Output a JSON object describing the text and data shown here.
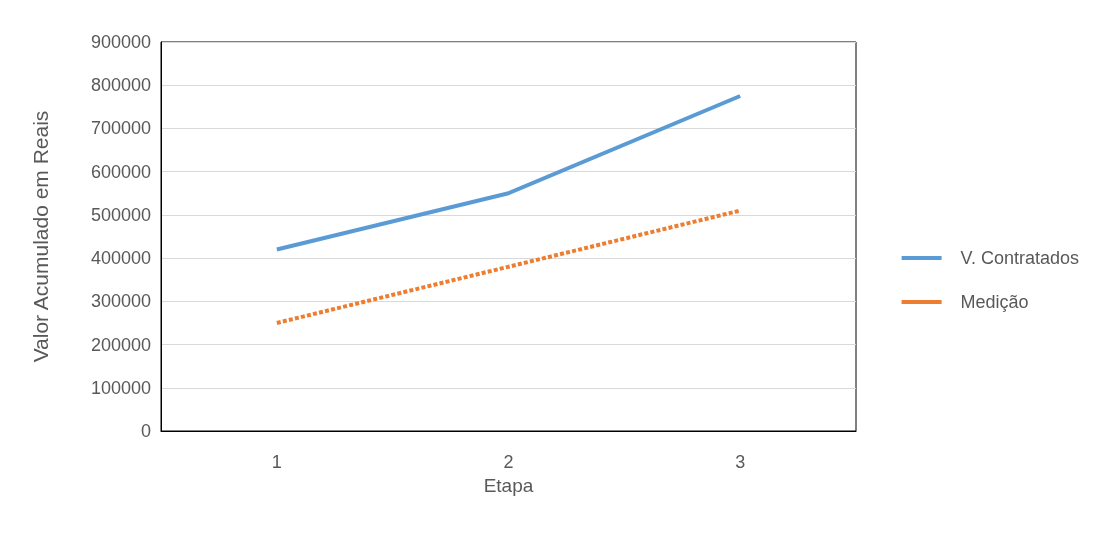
{
  "chart_data": {
    "type": "line",
    "xlabel": "Etapa",
    "ylabel": "Valor Acumulado em Reais",
    "categories": [
      "1",
      "2",
      "3"
    ],
    "series": [
      {
        "name": "V. Contratados",
        "color": "#5b9bd5",
        "values": [
          420000,
          550000,
          775000
        ],
        "line_style": "solid"
      },
      {
        "name": "Medição",
        "color": "#ed7d31",
        "values": [
          250000,
          380000,
          510000
        ],
        "line_style": "dashed"
      }
    ],
    "ylim": [
      0,
      900000
    ],
    "yticks": [
      0,
      100000,
      200000,
      300000,
      400000,
      500000,
      600000,
      700000,
      800000,
      900000
    ],
    "grid": "y",
    "legend": "right",
    "marker": "none"
  }
}
